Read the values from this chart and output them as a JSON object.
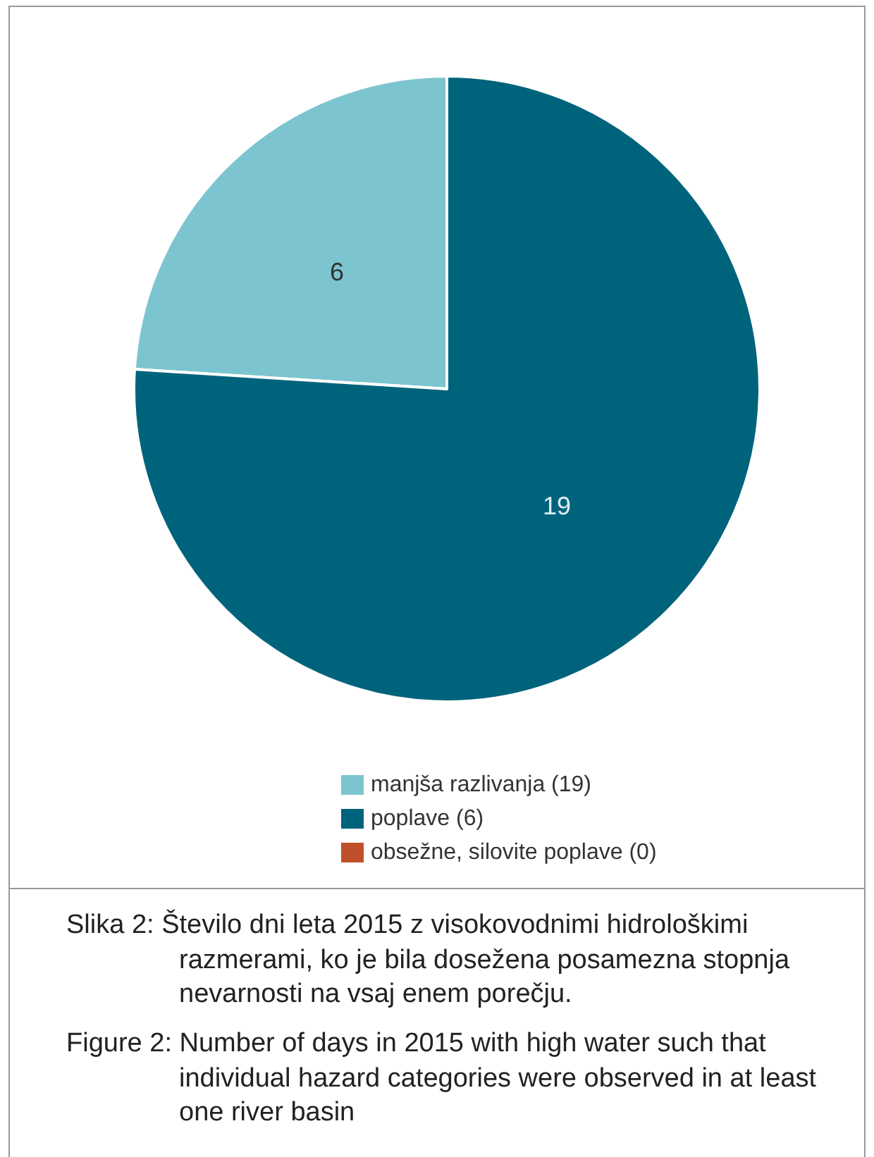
{
  "chart_data": {
    "type": "pie",
    "categories": [
      "manjša razlivanja (19)",
      "poplave (6)",
      "obsežne, silovite poplave (0)"
    ],
    "values": [
      6,
      19,
      0
    ],
    "colors": [
      "#7cc5d0",
      "#00637c",
      "#c0502a"
    ],
    "value_labels": [
      "6",
      "19",
      null
    ],
    "legend": "bottom",
    "annotations": [
      "Slika 2: Število dni leta 2015 z visokovodnimi hidrološkimi razmerami, ko je bila dosežena posamezna stopnja nevarnosti na vsaj enem porečju.",
      "Figure 2: Number of days in 2015 with high water such that individual hazard categories were observed in at least one river basin"
    ]
  }
}
